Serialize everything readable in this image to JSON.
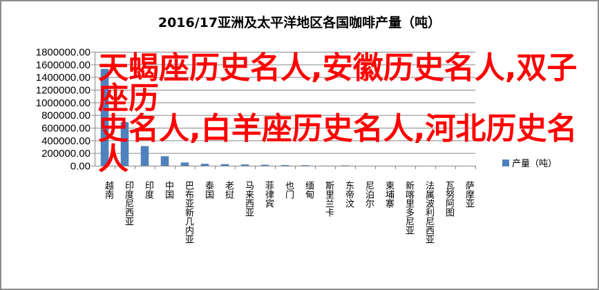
{
  "chart_data": {
    "type": "bar",
    "title": "2016/17亚洲及太平洋地区各国咖啡产量（吨）",
    "categories": [
      "越南",
      "印度尼西亚",
      "印度",
      "中国",
      "巴布亚新几内亚",
      "泰国",
      "老挝",
      "马来西亚",
      "菲律宾",
      "也门",
      "缅甸",
      "斯里兰卡",
      "东帝汶",
      "尼泊尔",
      "柬埔寨",
      "新喀里多尼亚",
      "法属波利尼西亚",
      "瓦努阿图",
      "萨摩亚"
    ],
    "series": [
      {
        "name": "产量（吨）",
        "values": [
          1530000,
          690000,
          310000,
          150000,
          50000,
          30000,
          25000,
          20000,
          15000,
          10000,
          8000,
          2000,
          5000,
          500,
          300,
          100,
          50,
          50,
          20
        ]
      }
    ],
    "ylim": [
      0,
      1800000
    ],
    "yticks": [
      "0.00",
      "200000.00",
      "400000.00",
      "600000.00",
      "800000.00",
      "1000000.00",
      "1200000.00",
      "1400000.00",
      "1600000.00",
      "1800000.00"
    ],
    "grid": true,
    "legend": "right",
    "color": "#4f81bd"
  },
  "overlay": {
    "line1": "天蝎座历史名人,安徽历史名人,双子座历",
    "line2": "史名人,白羊座历史名人,河北历史名人",
    "color": "#ff0000"
  }
}
